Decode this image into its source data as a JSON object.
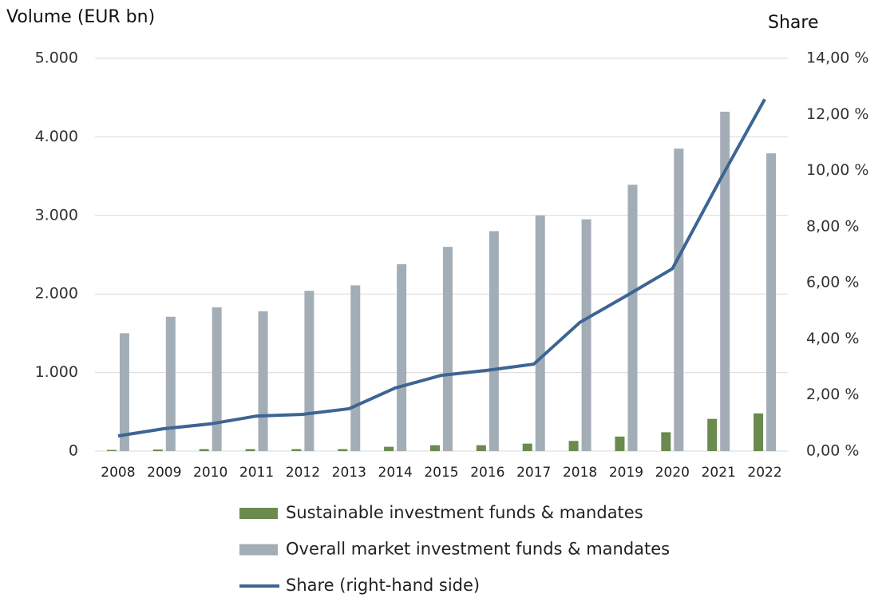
{
  "chart_data": {
    "type": "bar",
    "y_label": "Volume (EUR bn)",
    "y2_label": "Share",
    "categories": [
      "2008",
      "2009",
      "2010",
      "2011",
      "2012",
      "2013",
      "2014",
      "2015",
      "2016",
      "2017",
      "2018",
      "2019",
      "2020",
      "2021",
      "2022"
    ],
    "series": [
      {
        "name": "Sustainable investment funds & mandates",
        "type": "bar",
        "color": "#6a8a4e",
        "values": [
          15,
          20,
          25,
          25,
          25,
          25,
          55,
          75,
          75,
          95,
          130,
          185,
          240,
          410,
          480
        ]
      },
      {
        "name": "Overall market investment funds & mandates",
        "type": "bar",
        "color": "#a3adb6",
        "values": [
          1500,
          1710,
          1830,
          1780,
          2040,
          2110,
          2380,
          2600,
          2800,
          3000,
          2950,
          3390,
          3850,
          4320,
          3790
        ]
      },
      {
        "name": "Share (right-hand side)",
        "type": "line",
        "axis": "y2",
        "color": "#3d6594",
        "values": [
          0.54,
          0.8,
          0.97,
          1.25,
          1.31,
          1.51,
          2.25,
          2.7,
          2.88,
          3.1,
          4.59,
          5.53,
          6.5,
          9.57,
          12.54
        ]
      }
    ],
    "ylim": [
      0,
      5000
    ],
    "yticks": [
      0,
      {
        "value": 1000,
        "label": "1.000"
      },
      {
        "value": 2000,
        "label": "2.000"
      },
      {
        "value": 3000,
        "label": "3.000"
      },
      {
        "value": 4000,
        "label": "4.000"
      },
      {
        "value": 5000,
        "label": "5.000"
      }
    ],
    "y2lim": [
      0,
      14
    ],
    "y2ticks": [
      {
        "value": 0,
        "label": "0,00 %"
      },
      {
        "value": 2,
        "label": "2,00 %"
      },
      {
        "value": 4,
        "label": "4,00 %"
      },
      {
        "value": 6,
        "label": "6,00 %"
      },
      {
        "value": 8,
        "label": "8,00 %"
      },
      {
        "value": 10,
        "label": "10,00 %"
      },
      {
        "value": 12,
        "label": "12,00 %"
      },
      {
        "value": 14,
        "label": "14,00 %"
      }
    ],
    "grid": true
  }
}
